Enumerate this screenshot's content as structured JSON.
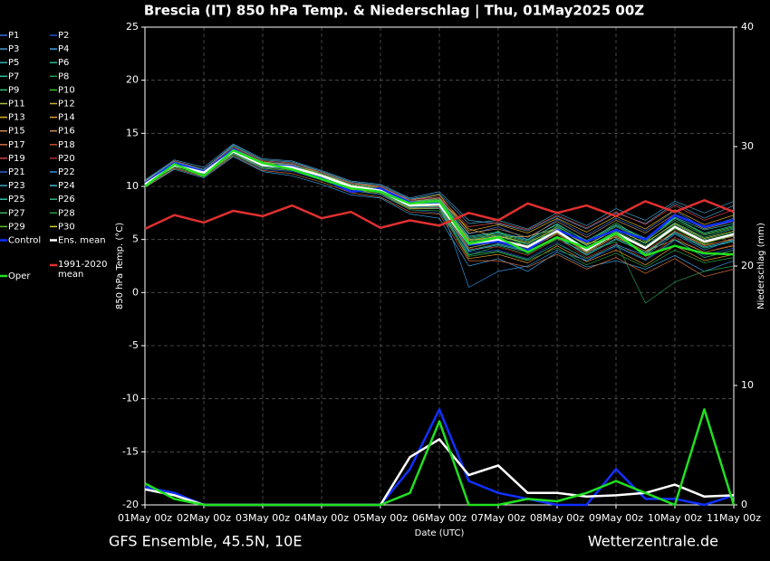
{
  "chart_data": {
    "type": "line",
    "title": "Brescia  (IT)  850 hPa Temp. & Niederschlag | Thu, 01May2025 00Z",
    "ylabel": "850 hPa Temp. (°C)",
    "y2label": "Niederschlag (mm)",
    "xlabel": "Date (UTC)",
    "footer_left": "GFS Ensemble, 45.5N, 10E",
    "footer_right": "Wetterzentrale.de",
    "categories": [
      "01May 00z",
      null,
      "02May 00z",
      null,
      "03May 00z",
      null,
      "04May 00z",
      null,
      "05May 00z",
      null,
      "06May 00z",
      null,
      "07May 00z",
      null,
      "08May 00z",
      null,
      "09May 00z",
      null,
      "10May 00z",
      null,
      "11May 00z"
    ],
    "ylim": [
      -20,
      25
    ],
    "yticks": [
      -20,
      -15,
      -10,
      -5,
      0,
      5,
      10,
      15,
      20,
      25
    ],
    "y2lim": [
      0,
      40
    ],
    "y2ticks": [
      0,
      10,
      20,
      30,
      40
    ],
    "grid": true,
    "background": "#000000",
    "series": [
      {
        "name": "P1",
        "color": "#3a6fd8",
        "linewidth": 0.7,
        "values": [
          10.4,
          12.3,
          11.5,
          13.6,
          12.3,
          12.1,
          11.2,
          10.3,
          9.8,
          8.8,
          9.0,
          5.5,
          6.2,
          5.0,
          6.9,
          5.4,
          7.0,
          5.8,
          7.7,
          6.1,
          7.0
        ]
      },
      {
        "name": "P2",
        "color": "#2050c0",
        "linewidth": 0.7,
        "values": [
          10.0,
          11.8,
          11.0,
          13.0,
          11.6,
          11.4,
          10.6,
          9.6,
          9.2,
          7.8,
          7.5,
          3.8,
          4.0,
          3.2,
          4.8,
          3.0,
          4.3,
          3.0,
          4.9,
          3.5,
          4.2
        ]
      },
      {
        "name": "P3",
        "color": "#4a9ad0",
        "linewidth": 0.7,
        "values": [
          10.6,
          12.5,
          11.8,
          14.0,
          12.6,
          12.4,
          11.5,
          10.5,
          10.2,
          8.9,
          9.5,
          6.8,
          6.5,
          5.8,
          7.2,
          6.0,
          7.5,
          6.5,
          8.4,
          7.0,
          8.2
        ]
      },
      {
        "name": "P4",
        "color": "#3aa0e0",
        "linewidth": 0.7,
        "values": [
          9.9,
          11.6,
          10.8,
          12.8,
          11.4,
          11.0,
          10.2,
          9.2,
          8.9,
          7.4,
          7.0,
          2.5,
          3.2,
          2.0,
          3.8,
          2.4,
          3.0,
          2.2,
          3.5,
          2.0,
          3.0
        ]
      },
      {
        "name": "P5",
        "color": "#30b0b0",
        "linewidth": 0.7,
        "values": [
          10.3,
          12.1,
          11.4,
          13.4,
          12.1,
          11.9,
          11.1,
          10.1,
          9.7,
          8.5,
          8.9,
          5.2,
          5.6,
          4.9,
          6.5,
          4.8,
          6.3,
          5.0,
          7.1,
          5.9,
          6.5
        ]
      },
      {
        "name": "P6",
        "color": "#2ab890",
        "linewidth": 0.7,
        "values": [
          10.1,
          11.9,
          11.2,
          13.2,
          11.9,
          11.7,
          10.9,
          9.9,
          9.5,
          8.0,
          8.0,
          4.0,
          4.6,
          3.9,
          5.3,
          3.5,
          5.0,
          3.8,
          5.6,
          4.2,
          4.8
        ]
      },
      {
        "name": "P7",
        "color": "#30c0a0",
        "linewidth": 0.7,
        "values": [
          10.5,
          12.4,
          11.6,
          13.8,
          12.4,
          12.2,
          11.4,
          10.4,
          10.0,
          8.6,
          8.7,
          5.0,
          5.4,
          4.6,
          6.1,
          4.4,
          6.0,
          4.6,
          6.6,
          5.2,
          6.0
        ]
      },
      {
        "name": "P8",
        "color": "#20a050",
        "linewidth": 0.7,
        "values": [
          10.2,
          12.0,
          11.3,
          13.1,
          11.8,
          11.6,
          10.8,
          9.8,
          9.4,
          7.9,
          8.1,
          3.5,
          4.4,
          3.6,
          5.0,
          3.8,
          4.8,
          -1.0,
          1.0,
          2.0,
          2.5
        ]
      },
      {
        "name": "P9",
        "color": "#30c070",
        "linewidth": 0.7,
        "values": [
          10.0,
          11.9,
          11.1,
          13.3,
          12.0,
          11.7,
          11.0,
          10.0,
          9.6,
          8.3,
          8.4,
          4.8,
          5.3,
          4.5,
          5.9,
          4.2,
          5.8,
          4.4,
          6.4,
          5.0,
          5.7
        ]
      },
      {
        "name": "P10",
        "color": "#40c030",
        "linewidth": 0.7,
        "values": [
          10.3,
          12.2,
          11.3,
          13.5,
          12.2,
          12.0,
          11.2,
          10.2,
          9.8,
          8.4,
          8.6,
          4.7,
          5.8,
          4.2,
          6.3,
          4.6,
          6.6,
          4.8,
          7.0,
          5.5,
          6.2
        ]
      },
      {
        "name": "P11",
        "color": "#b0c040",
        "linewidth": 0.7,
        "values": [
          10.4,
          12.1,
          11.4,
          13.2,
          11.9,
          11.8,
          10.9,
          9.9,
          9.5,
          8.1,
          8.2,
          4.2,
          4.8,
          4.0,
          5.6,
          3.8,
          5.4,
          3.6,
          5.8,
          4.5,
          5.0
        ]
      },
      {
        "name": "P12",
        "color": "#d0b040",
        "linewidth": 0.7,
        "values": [
          10.1,
          12.0,
          11.2,
          13.4,
          12.1,
          11.9,
          11.1,
          10.1,
          9.7,
          8.5,
          8.8,
          6.0,
          5.2,
          5.3,
          6.0,
          4.6,
          5.2,
          3.9,
          5.0,
          3.8,
          4.4
        ]
      },
      {
        "name": "P13",
        "color": "#e0b020",
        "linewidth": 0.7,
        "values": [
          10.2,
          12.3,
          11.5,
          13.5,
          12.3,
          12.0,
          11.3,
          10.3,
          9.9,
          8.7,
          9.2,
          5.8,
          6.4,
          5.6,
          7.0,
          5.7,
          7.2,
          6.0,
          7.8,
          6.4,
          7.3
        ]
      },
      {
        "name": "P14",
        "color": "#e09a30",
        "linewidth": 0.7,
        "values": [
          10.3,
          11.8,
          11.0,
          13.1,
          11.7,
          11.5,
          10.7,
          9.7,
          9.3,
          7.9,
          7.9,
          3.2,
          3.6,
          2.8,
          4.4,
          2.9,
          4.0,
          2.6,
          4.4,
          3.0,
          3.6
        ]
      },
      {
        "name": "P15",
        "color": "#d08a50",
        "linewidth": 0.7,
        "values": [
          10.2,
          12.2,
          11.3,
          13.3,
          12.0,
          11.8,
          11.0,
          10.0,
          9.6,
          8.2,
          8.5,
          5.0,
          5.0,
          4.4,
          5.7,
          4.1,
          5.7,
          4.3,
          6.1,
          4.7,
          5.3
        ]
      },
      {
        "name": "P16",
        "color": "#c09060",
        "linewidth": 0.7,
        "values": [
          10.5,
          12.2,
          11.5,
          13.6,
          12.2,
          12.1,
          11.1,
          10.2,
          9.8,
          8.6,
          8.9,
          5.6,
          6.0,
          5.2,
          6.7,
          5.2,
          6.8,
          5.6,
          7.4,
          6.0,
          6.7
        ]
      },
      {
        "name": "P17",
        "color": "#d07040",
        "linewidth": 0.7,
        "values": [
          9.9,
          11.7,
          10.9,
          12.9,
          11.5,
          11.2,
          10.4,
          9.4,
          9.0,
          7.6,
          7.4,
          3.0,
          3.0,
          2.4,
          3.6,
          2.2,
          3.3,
          1.8,
          3.2,
          1.5,
          2.2
        ]
      },
      {
        "name": "P18",
        "color": "#c05030",
        "linewidth": 0.7,
        "values": [
          10.3,
          12.1,
          11.3,
          13.3,
          12.0,
          11.9,
          11.0,
          10.0,
          9.6,
          8.3,
          8.3,
          4.4,
          4.9,
          4.1,
          5.5,
          3.7,
          5.3,
          3.9,
          5.8,
          4.4,
          5.1
        ]
      },
      {
        "name": "P19",
        "color": "#d04040",
        "linewidth": 0.7,
        "values": [
          10.4,
          12.4,
          11.6,
          13.7,
          12.4,
          12.2,
          11.3,
          10.3,
          10.0,
          8.7,
          9.0,
          6.2,
          6.6,
          5.9,
          7.3,
          6.1,
          7.6,
          6.4,
          8.2,
          6.8,
          7.8
        ]
      },
      {
        "name": "P20",
        "color": "#b03030",
        "linewidth": 0.7,
        "values": [
          10.0,
          11.9,
          11.1,
          13.2,
          11.8,
          11.6,
          10.8,
          9.8,
          9.4,
          8.0,
          8.0,
          4.1,
          4.3,
          3.5,
          5.1,
          3.3,
          4.6,
          3.2,
          5.2,
          3.8,
          4.5
        ]
      },
      {
        "name": "P21",
        "color": "#3060d0",
        "linewidth": 0.7,
        "values": [
          10.2,
          12.0,
          11.3,
          13.3,
          12.0,
          11.8,
          11.0,
          10.0,
          9.6,
          8.2,
          8.3,
          4.6,
          5.1,
          4.3,
          5.8,
          4.0,
          5.6,
          4.2,
          6.2,
          4.8,
          5.5
        ]
      },
      {
        "name": "P22",
        "color": "#3090e0",
        "linewidth": 0.7,
        "values": [
          10.1,
          12.1,
          11.2,
          13.4,
          12.1,
          11.9,
          11.0,
          10.1,
          9.7,
          8.4,
          8.6,
          0.5,
          2.0,
          2.5,
          4.0,
          3.0,
          4.5,
          3.5,
          5.5,
          4.0,
          5.0
        ]
      },
      {
        "name": "P23",
        "color": "#40a0c0",
        "linewidth": 0.7,
        "values": [
          10.6,
          12.3,
          11.6,
          13.9,
          12.5,
          12.3,
          11.4,
          10.4,
          10.1,
          8.8,
          9.3,
          6.5,
          6.8,
          6.0,
          7.5,
          6.3,
          7.9,
          6.8,
          8.6,
          7.5,
          8.6
        ]
      },
      {
        "name": "P24",
        "color": "#40b8d0",
        "linewidth": 0.7,
        "values": [
          10.2,
          12.0,
          11.3,
          13.2,
          11.9,
          11.7,
          10.9,
          9.9,
          9.5,
          8.1,
          8.1,
          3.9,
          4.5,
          3.8,
          5.2,
          3.6,
          5.1,
          3.7,
          5.7,
          4.3,
          4.9
        ]
      },
      {
        "name": "P25",
        "color": "#30c0a8",
        "linewidth": 0.7,
        "values": [
          10.3,
          12.2,
          11.4,
          13.4,
          12.1,
          11.9,
          11.1,
          10.1,
          9.7,
          8.4,
          8.7,
          5.3,
          5.7,
          5.0,
          6.4,
          4.9,
          6.4,
          5.1,
          7.0,
          5.6,
          6.3
        ]
      },
      {
        "name": "P26",
        "color": "#30b080",
        "linewidth": 0.7,
        "values": [
          10.1,
          11.9,
          11.2,
          13.1,
          11.8,
          11.6,
          10.8,
          9.8,
          9.4,
          8.0,
          7.9,
          3.6,
          3.9,
          3.1,
          4.6,
          3.2,
          4.4,
          3.1,
          5.0,
          3.3,
          4.0
        ]
      },
      {
        "name": "P27",
        "color": "#40b060",
        "linewidth": 0.7,
        "values": [
          10.4,
          12.3,
          11.5,
          13.5,
          12.2,
          12.0,
          11.2,
          10.2,
          9.8,
          8.5,
          8.8,
          5.1,
          5.5,
          4.8,
          6.2,
          4.7,
          6.2,
          4.9,
          6.8,
          5.4,
          6.1
        ]
      },
      {
        "name": "P28",
        "color": "#28a040",
        "linewidth": 0.7,
        "values": [
          10.0,
          11.8,
          11.0,
          13.0,
          11.7,
          11.5,
          10.6,
          9.6,
          9.3,
          7.8,
          7.7,
          3.4,
          3.8,
          3.0,
          4.2,
          2.6,
          3.7,
          2.4,
          4.0,
          2.8,
          3.3
        ]
      },
      {
        "name": "P29",
        "color": "#60c030",
        "linewidth": 0.7,
        "values": [
          10.3,
          12.1,
          11.4,
          13.4,
          12.1,
          11.8,
          11.0,
          10.0,
          9.6,
          8.3,
          8.4,
          4.5,
          5.0,
          4.2,
          5.8,
          4.0,
          5.5,
          4.1,
          6.0,
          4.6,
          5.4
        ]
      },
      {
        "name": "P30",
        "color": "#d0d030",
        "linewidth": 0.7,
        "values": [
          10.2,
          12.2,
          11.3,
          13.3,
          12.0,
          11.9,
          11.1,
          10.1,
          9.7,
          8.3,
          8.5,
          4.9,
          5.3,
          4.7,
          6.0,
          4.5,
          5.9,
          4.7,
          6.5,
          5.1,
          5.8
        ]
      },
      {
        "name": "Control",
        "color": "#1030ff",
        "linewidth": 2.5,
        "values": [
          10.3,
          12.2,
          11.4,
          13.5,
          12.0,
          11.9,
          10.8,
          9.5,
          9.8,
          8.5,
          8.4,
          4.5,
          4.8,
          4.0,
          5.9,
          4.8,
          5.9,
          5.0,
          7.3,
          6.2,
          6.8
        ],
        "precip": [
          1.5,
          1.0,
          0,
          0,
          0,
          0,
          0,
          0,
          0,
          3.0,
          8.0,
          2.0,
          1.0,
          0.5,
          0,
          0,
          3.0,
          0.5,
          0.5,
          0,
          0.8
        ]
      },
      {
        "name": "Ens. mean",
        "color": "#ffffff",
        "linewidth": 2.5,
        "values": [
          10.2,
          12.0,
          11.3,
          13.3,
          12.0,
          11.8,
          11.0,
          10.0,
          9.6,
          8.2,
          8.3,
          4.6,
          5.0,
          4.3,
          5.8,
          4.0,
          5.6,
          4.2,
          6.2,
          4.8,
          5.5
        ],
        "precip": [
          1.3,
          0.8,
          0,
          0,
          0,
          0,
          0,
          0,
          0,
          4.0,
          5.5,
          2.5,
          3.3,
          1.0,
          1.0,
          0.7,
          0.8,
          1.0,
          1.7,
          0.7,
          0.8
        ]
      },
      {
        "name": "1991-2020 mean",
        "color": "#e03030",
        "linewidth": 2.5,
        "values": [
          6.0,
          7.3,
          6.6,
          7.7,
          7.2,
          8.2,
          7.0,
          7.6,
          6.1,
          6.8,
          6.3,
          7.5,
          6.8,
          8.4,
          7.5,
          8.2,
          7.2,
          8.6,
          7.6,
          8.7,
          7.6
        ]
      },
      {
        "name": "Oper",
        "color": "#20e020",
        "linewidth": 2.5,
        "values": [
          10.0,
          12.1,
          11.0,
          13.4,
          12.2,
          11.6,
          10.7,
          9.8,
          9.5,
          8.4,
          8.6,
          4.6,
          5.2,
          3.8,
          5.2,
          4.2,
          5.6,
          3.5,
          4.4,
          3.7,
          3.6
        ],
        "precip": [
          1.8,
          0.5,
          0,
          0,
          0,
          0,
          0,
          0,
          0,
          1.0,
          7.0,
          0,
          0,
          0.5,
          0.3,
          1.0,
          2.0,
          1.0,
          0,
          8.0,
          0
        ]
      }
    ]
  }
}
